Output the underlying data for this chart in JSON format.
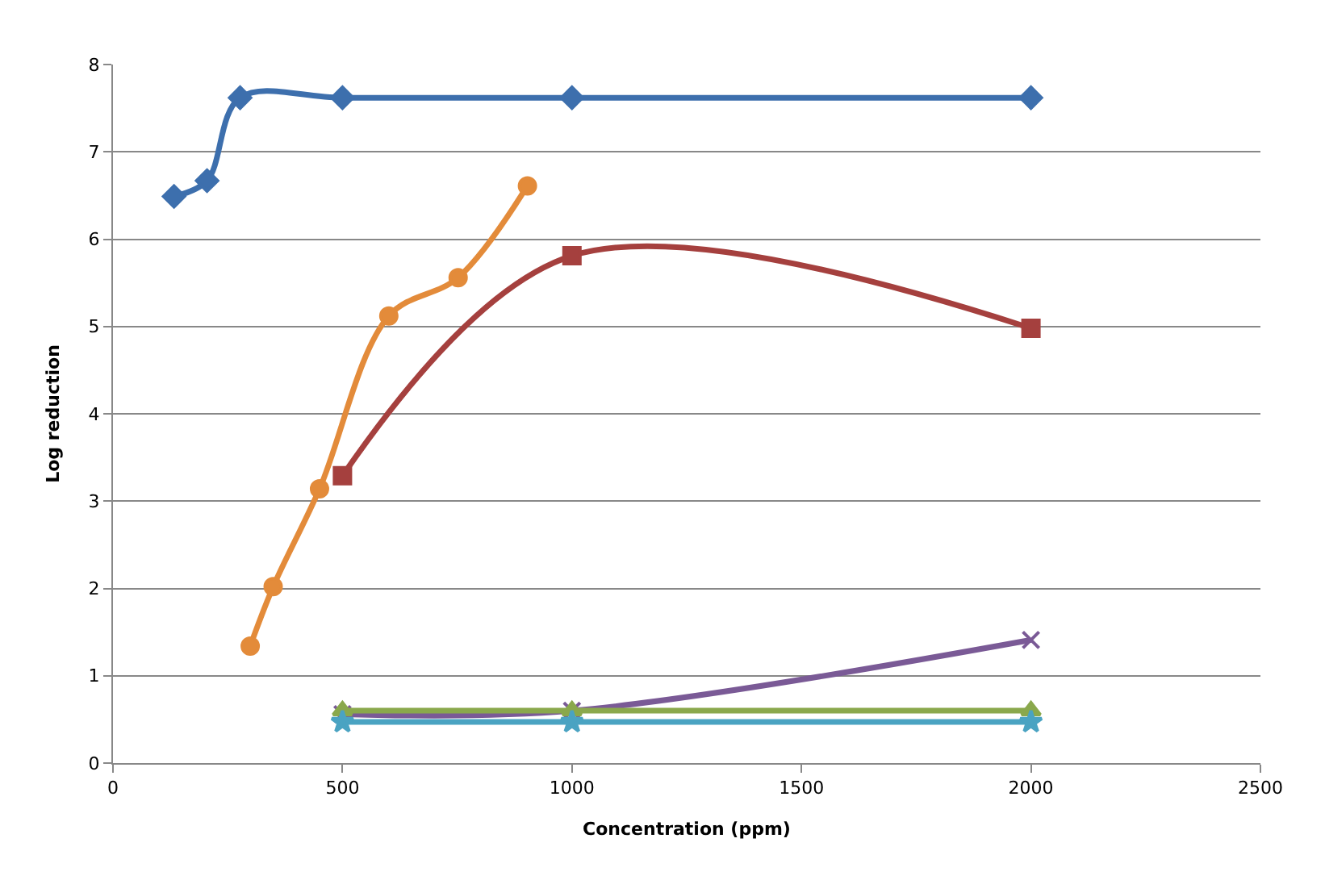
{
  "chart_data": {
    "type": "line",
    "xlabel": "Concentration (ppm)",
    "ylabel": "Log reduction",
    "xlim": [
      0,
      2500
    ],
    "xticks": [
      0,
      500,
      1000,
      1500,
      2000,
      2500
    ],
    "ylim": [
      0,
      8
    ],
    "yticks": [
      0,
      1,
      2,
      3,
      4,
      5,
      6,
      7,
      8
    ],
    "grid": "y",
    "legend": false,
    "series": [
      {
        "color": "#3d6fad",
        "marker": "diamond",
        "x": [
          133,
          205,
          277,
          500,
          1000,
          2000
        ],
        "values": [
          6.49,
          6.67,
          7.62,
          7.62,
          7.62,
          7.62
        ]
      },
      {
        "color": "#e38b3a",
        "marker": "circle",
        "x": [
          299,
          349,
          450,
          601,
          752,
          903
        ],
        "values": [
          1.34,
          2.02,
          3.14,
          5.12,
          5.56,
          6.61
        ]
      },
      {
        "color": "#a5403e",
        "marker": "square",
        "x": [
          500,
          1000,
          2000
        ],
        "values": [
          3.29,
          5.81,
          4.98
        ]
      },
      {
        "color": "#7a5a96",
        "marker": "cross",
        "x": [
          500,
          1000,
          2000
        ],
        "values": [
          0.56,
          0.6,
          1.41
        ]
      },
      {
        "color": "#8aa84c",
        "marker": "triangle",
        "x": [
          500,
          1000,
          2000
        ],
        "values": [
          0.6,
          0.6,
          0.6
        ]
      },
      {
        "color": "#4aa3c2",
        "marker": "star",
        "x": [
          500,
          1000,
          2000
        ],
        "values": [
          0.47,
          0.47,
          0.47
        ]
      }
    ]
  }
}
